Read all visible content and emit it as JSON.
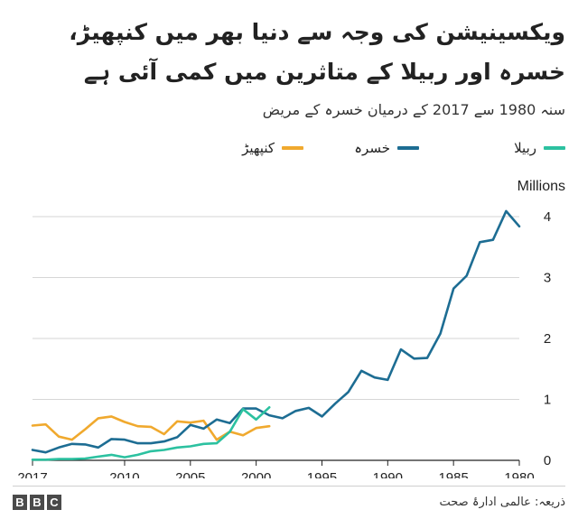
{
  "title": "ویکسینیشن کی وجہ سے دنیا بھر میں کنپھیڑ، خسرہ اور ربیلا کے متاثرین میں کمی آئی ہے",
  "subtitle": "سنہ 1980 سے 2017 کے درمیان خسرہ کے مریض",
  "source": "ذریعہ: عالمی ادارۂ صحت",
  "logo": [
    "B",
    "B",
    "C"
  ],
  "colors": {
    "rubella": "#2cc1a0",
    "measles": "#1d6d93",
    "mumps": "#f0a92e",
    "grid": "#d6d6d6",
    "axis": "#222222"
  },
  "chart_data": {
    "type": "line",
    "units_label": "Millions",
    "x_reversed": true,
    "xlim": [
      1980,
      2017
    ],
    "ylim": [
      0,
      4
    ],
    "x_ticks": [
      2017,
      2010,
      2005,
      2000,
      1995,
      1990,
      1985,
      1980
    ],
    "y_ticks": [
      0,
      1,
      2,
      3,
      4
    ],
    "grid": "horizontal",
    "legend_position": "top",
    "series": [
      {
        "key": "rubella",
        "name": "ربیلا",
        "x": [
          2017,
          2016,
          2015,
          2014,
          2013,
          2012,
          2011,
          2010,
          2009,
          2008,
          2007,
          2006,
          2005,
          2004,
          2003,
          2002,
          2001,
          2000,
          1999
        ],
        "y": [
          0.01,
          0.01,
          0.02,
          0.02,
          0.03,
          0.06,
          0.09,
          0.05,
          0.09,
          0.15,
          0.17,
          0.21,
          0.23,
          0.27,
          0.28,
          0.47,
          0.84,
          0.67,
          0.87
        ]
      },
      {
        "key": "measles",
        "name": "خسرہ",
        "x": [
          2017,
          2016,
          2015,
          2014,
          2013,
          2012,
          2011,
          2010,
          2009,
          2008,
          2007,
          2006,
          2005,
          2004,
          2003,
          2002,
          2001,
          2000,
          1999,
          1998,
          1997,
          1996,
          1995,
          1994,
          1993,
          1992,
          1991,
          1990,
          1989,
          1988,
          1987,
          1986,
          1985,
          1984,
          1983,
          1982,
          1981,
          1980
        ],
        "y": [
          0.17,
          0.13,
          0.21,
          0.27,
          0.26,
          0.21,
          0.35,
          0.34,
          0.28,
          0.28,
          0.31,
          0.38,
          0.58,
          0.52,
          0.67,
          0.61,
          0.85,
          0.85,
          0.74,
          0.69,
          0.81,
          0.86,
          0.72,
          0.93,
          1.12,
          1.47,
          1.36,
          1.32,
          1.82,
          1.67,
          1.68,
          2.08,
          2.82,
          3.03,
          3.58,
          3.62,
          4.09,
          3.84
        ]
      },
      {
        "key": "mumps",
        "name": "کنپھیڑ",
        "x": [
          2017,
          2016,
          2015,
          2014,
          2013,
          2012,
          2011,
          2010,
          2009,
          2008,
          2007,
          2006,
          2005,
          2004,
          2003,
          2002,
          2001,
          2000,
          1999
        ],
        "y": [
          0.57,
          0.59,
          0.39,
          0.34,
          0.51,
          0.69,
          0.72,
          0.63,
          0.56,
          0.55,
          0.43,
          0.64,
          0.62,
          0.65,
          0.34,
          0.47,
          0.41,
          0.53,
          0.56
        ]
      }
    ]
  }
}
